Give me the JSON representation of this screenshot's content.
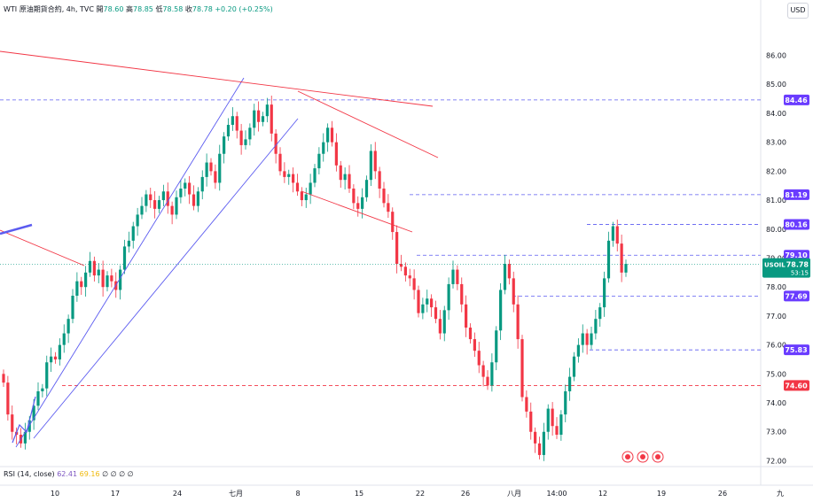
{
  "legend": {
    "symbol": "WTI 原油期貨合約, 4h, TVC",
    "open_label": "開",
    "open": "78.60",
    "high_label": "高",
    "high": "78.85",
    "low_label": "低",
    "low": "78.58",
    "close_label": "收",
    "close": "78.78",
    "change": "+0.20 (+0.25%)"
  },
  "currency_button": "USD",
  "price_badge": {
    "symbol": "USOIL",
    "price": "78.78",
    "countdown": "53:15"
  },
  "rsi_legend": {
    "label": "RSI (14, close)",
    "value": "62.41",
    "ma": "69.16",
    "extra": "∅ ∅ ∅ ∅"
  },
  "colors": {
    "up": "#089981",
    "down": "#f23645",
    "channel": "#5b5bf0",
    "trend": "#f23645",
    "hline": "#5b5bf0",
    "hline_red": "#f23645",
    "label_bg": "#6a3cff",
    "label_red": "#f23645"
  },
  "chart_data": {
    "type": "candlestick",
    "title": "WTI 原油期貨合約, 4h, TVC",
    "ylim": [
      71.8,
      87.3
    ],
    "y_ticks": [
      "72.00",
      "73.00",
      "74.00",
      "75.00",
      "76.00",
      "77.00",
      "78.00",
      "79.00",
      "80.00",
      "81.00",
      "82.00",
      "83.00",
      "84.00",
      "85.00",
      "86.00"
    ],
    "x_ticks": [
      "10",
      "17",
      "24",
      "七月",
      "8",
      "15",
      "22",
      "26",
      "八月",
      "14:00",
      "12",
      "19",
      "26",
      "九"
    ],
    "price_levels": [
      {
        "label": "84.46",
        "value": 84.46,
        "color": "hline"
      },
      {
        "label": "81.19",
        "value": 81.19,
        "color": "hline"
      },
      {
        "label": "80.16",
        "value": 80.16,
        "color": "hline"
      },
      {
        "label": "79.10",
        "value": 79.1,
        "color": "hline"
      },
      {
        "label": "77.69",
        "value": 77.69,
        "color": "hline"
      },
      {
        "label": "75.83",
        "value": 75.83,
        "color": "hline"
      },
      {
        "label": "74.60",
        "value": 74.6,
        "color": "hline_red"
      }
    ],
    "last_price": 78.78,
    "closes": [
      74.7,
      73.6,
      73.0,
      72.9,
      72.6,
      73.0,
      73.4,
      73.9,
      74.4,
      74.5,
      75.4,
      75.6,
      75.5,
      76.0,
      76.4,
      76.9,
      77.7,
      78.2,
      78.0,
      78.5,
      78.9,
      78.4,
      78.6,
      78.0,
      78.4,
      78.2,
      77.9,
      78.6,
      79.4,
      79.6,
      80.1,
      80.5,
      80.8,
      81.2,
      81.0,
      80.7,
      81.0,
      81.3,
      80.8,
      80.5,
      81.1,
      81.4,
      81.6,
      81.2,
      80.8,
      81.3,
      81.8,
      82.3,
      82.0,
      81.6,
      82.6,
      83.2,
      83.6,
      83.9,
      83.4,
      82.9,
      83.1,
      83.5,
      84.1,
      83.7,
      83.9,
      84.3,
      83.3,
      82.6,
      82.0,
      81.8,
      81.9,
      81.6,
      81.3,
      81.0,
      81.2,
      81.6,
      82.1,
      82.6,
      83.0,
      83.5,
      83.0,
      82.2,
      81.7,
      81.9,
      81.4,
      80.9,
      80.7,
      81.1,
      81.7,
      82.7,
      82.0,
      81.4,
      80.9,
      80.6,
      79.9,
      78.8,
      78.7,
      78.4,
      78.3,
      77.9,
      77.1,
      77.4,
      77.6,
      77.3,
      76.9,
      76.4,
      77.2,
      78.1,
      78.6,
      78.1,
      77.4,
      76.6,
      76.2,
      75.8,
      75.3,
      74.9,
      74.6,
      75.4,
      76.5,
      77.9,
      78.8,
      78.3,
      77.4,
      76.2,
      74.2,
      73.7,
      73.0,
      72.6,
      72.2,
      73.0,
      73.8,
      73.2,
      72.9,
      73.6,
      74.4,
      74.9,
      75.6,
      76.0,
      76.4,
      76.0,
      76.4,
      76.9,
      77.3,
      78.3,
      79.6,
      80.1,
      79.5,
      78.5,
      78.8
    ],
    "data_source": "TVC"
  }
}
